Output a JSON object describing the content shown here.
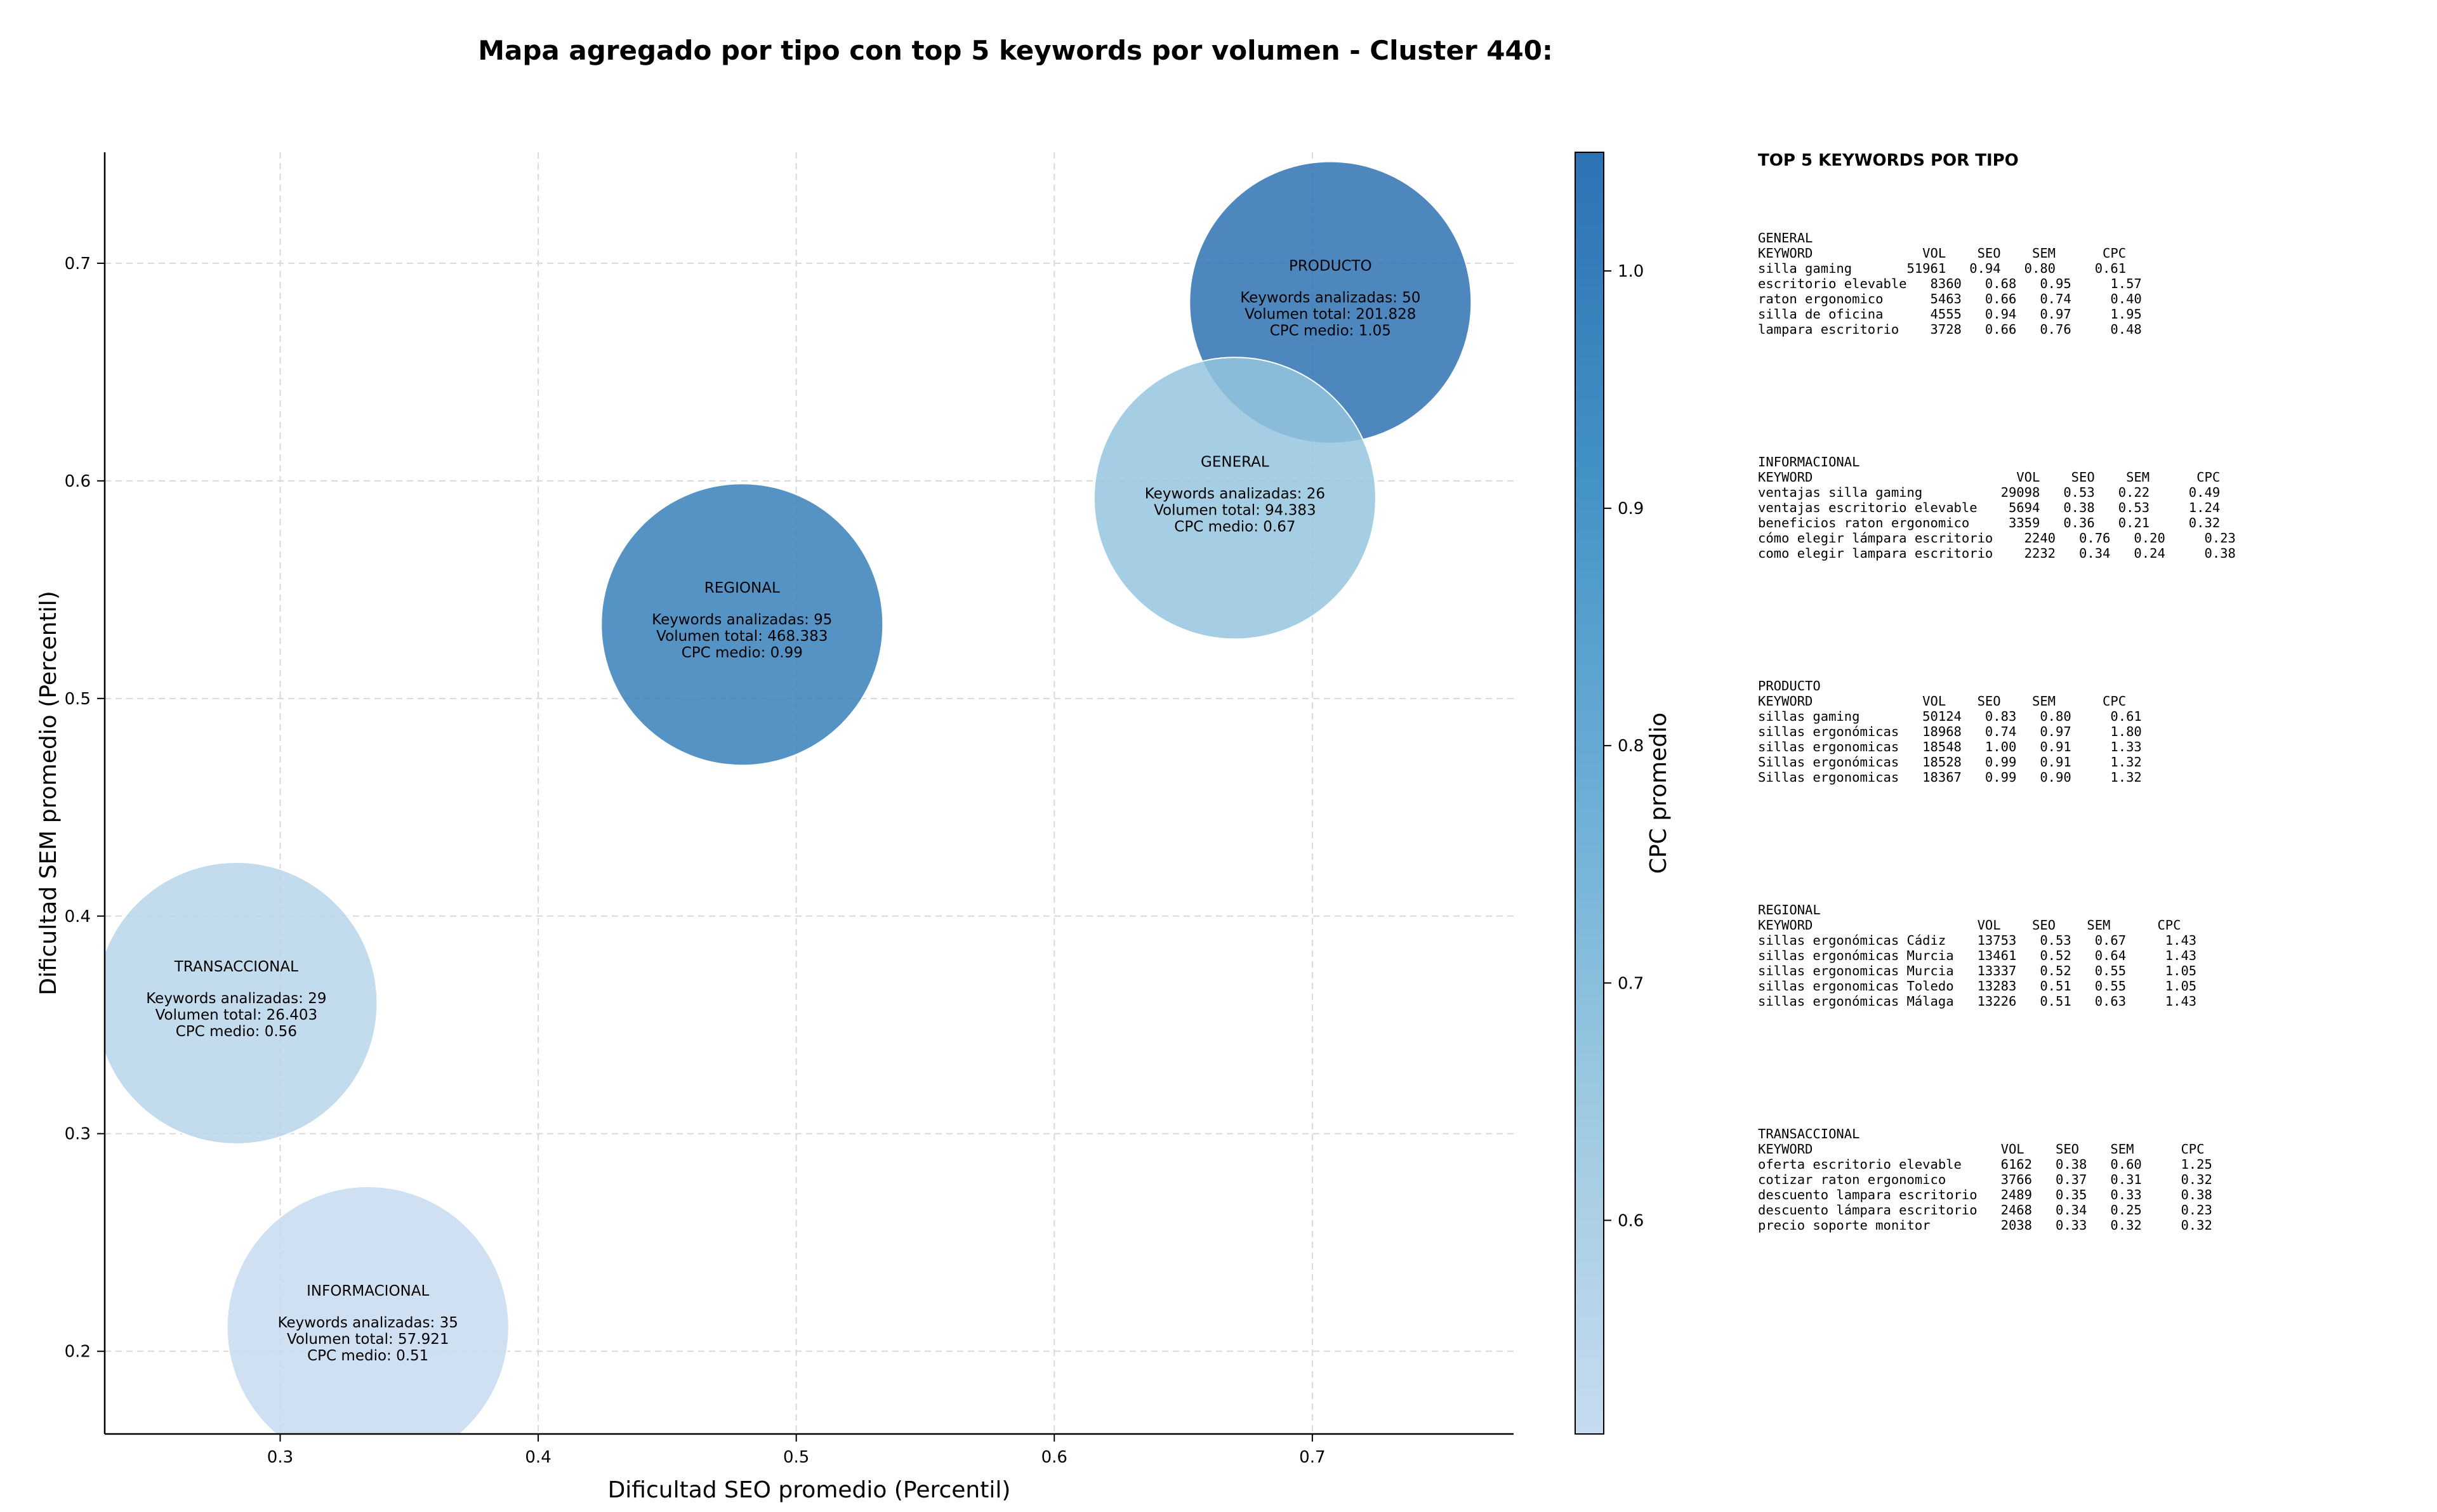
{
  "chart_data": {
    "type": "scatter",
    "title": "Mapa agregado por tipo con top 5 keywords por volumen - Cluster 440:",
    "xlabel": "Dificultad SEO promedio (Percentil)",
    "ylabel": "Dificultad SEM promedio (Percentil)",
    "xlim": [
      0.232,
      0.778
    ],
    "ylim": [
      0.162,
      0.751
    ],
    "xticks": [
      "0.3",
      "0.4",
      "0.5",
      "0.6",
      "0.7"
    ],
    "yticks": [
      "0.2",
      "0.3",
      "0.4",
      "0.5",
      "0.6",
      "0.7"
    ],
    "grid": true,
    "colorbar": {
      "label": "CPC promedio",
      "range": [
        0.51,
        1.05
      ],
      "ticks": [
        "0.6",
        "0.7",
        "0.8",
        "0.9",
        "1.0"
      ],
      "colors": [
        "#c6dbef",
        "#9ecae1",
        "#6baed6",
        "#4292c6",
        "#2e72b3"
      ]
    },
    "points": [
      {
        "name": "PRODUCTO",
        "x": 0.707,
        "y": 0.682,
        "cpc": 1.05,
        "line1": "Keywords analizadas: 50",
        "line2": "Volumen total: 201.828",
        "line3": "CPC medio: 1.05"
      },
      {
        "name": "GENERAL",
        "x": 0.67,
        "y": 0.592,
        "cpc": 0.67,
        "line1": "Keywords analizadas: 26",
        "line2": "Volumen total: 94.383",
        "line3": "CPC medio: 0.67"
      },
      {
        "name": "REGIONAL",
        "x": 0.479,
        "y": 0.534,
        "cpc": 0.99,
        "line1": "Keywords analizadas: 95",
        "line2": "Volumen total: 468.383",
        "line3": "CPC medio: 0.99"
      },
      {
        "name": "TRANSACCIONAL",
        "x": 0.283,
        "y": 0.36,
        "cpc": 0.56,
        "line1": "Keywords analizadas: 29",
        "line2": "Volumen total: 26.403",
        "line3": "CPC medio: 0.56"
      },
      {
        "name": "INFORMACIONAL",
        "x": 0.334,
        "y": 0.211,
        "cpc": 0.51,
        "line1": "Keywords analizadas: 35",
        "line2": "Volumen total: 57.921",
        "line3": "CPC medio: 0.51"
      }
    ]
  },
  "side_panel": {
    "title": "TOP 5 KEYWORDS POR TIPO",
    "blocks": [
      {
        "text": "GENERAL\nKEYWORD              VOL    SEO    SEM      CPC\nsilla gaming       51961   0.94   0.80     0.61\nescritorio elevable   8360   0.68   0.95     1.57\nraton ergonomico      5463   0.66   0.74     0.40\nsilla de oficina      4555   0.94   0.97     1.95\nlampara escritorio    3728   0.66   0.76     0.48"
      },
      {
        "text": "INFORMACIONAL\nKEYWORD                          VOL    SEO    SEM      CPC\nventajas silla gaming          29098   0.53   0.22     0.49\nventajas escritorio elevable    5694   0.38   0.53     1.24\nbeneficios raton ergonomico     3359   0.36   0.21     0.32\ncómo elegir lámpara escritorio    2240   0.76   0.20     0.23\ncomo elegir lampara escritorio    2232   0.34   0.24     0.38"
      },
      {
        "text": "PRODUCTO\nKEYWORD              VOL    SEO    SEM      CPC\nsillas gaming        50124   0.83   0.80     0.61\nsillas ergonómicas   18968   0.74   0.97     1.80\nsillas ergonomicas   18548   1.00   0.91     1.33\nSillas ergonómicas   18528   0.99   0.91     1.32\nSillas ergonomicas   18367   0.99   0.90     1.32"
      },
      {
        "text": "REGIONAL\nKEYWORD                     VOL    SEO    SEM      CPC\nsillas ergonómicas Cádiz    13753   0.53   0.67     1.43\nsillas ergonómicas Murcia   13461   0.52   0.64     1.43\nsillas ergonomicas Murcia   13337   0.52   0.55     1.05\nsillas ergonomicas Toledo   13283   0.51   0.55     1.05\nsillas ergonómicas Málaga   13226   0.51   0.63     1.43"
      },
      {
        "text": "TRANSACCIONAL\nKEYWORD                        VOL    SEO    SEM      CPC\noferta escritorio elevable     6162   0.38   0.60     1.25\ncotizar raton ergonomico       3766   0.37   0.31     0.32\ndescuento lampara escritorio   2489   0.35   0.33     0.38\ndescuento lámpara escritorio   2468   0.34   0.25     0.23\nprecio soporte monitor         2038   0.33   0.32     0.32"
      }
    ]
  }
}
